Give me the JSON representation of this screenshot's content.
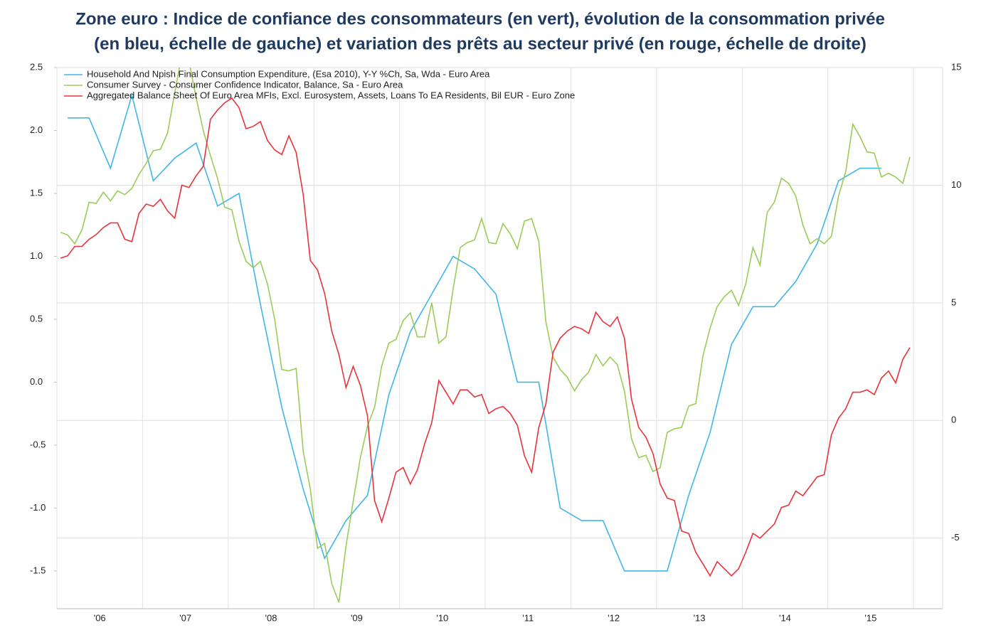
{
  "chart_data": {
    "type": "line",
    "title": [
      "Zone euro : Indice de confiance des consommateurs (en vert), évolution de la consommation privée",
      "(en bleu, échelle de gauche) et variation des prêts au secteur privé (en rouge, échelle de droite)"
    ],
    "x": [
      2006.042,
      2006.125,
      2006.208,
      2006.292,
      2006.375,
      2006.458,
      2006.542,
      2006.625,
      2006.708,
      2006.792,
      2006.875,
      2006.958,
      2007.042,
      2007.125,
      2007.208,
      2007.292,
      2007.375,
      2007.458,
      2007.542,
      2007.625,
      2007.708,
      2007.792,
      2007.875,
      2007.958,
      2008.042,
      2008.125,
      2008.208,
      2008.292,
      2008.375,
      2008.458,
      2008.542,
      2008.625,
      2008.708,
      2008.792,
      2008.875,
      2008.958,
      2009.042,
      2009.125,
      2009.208,
      2009.292,
      2009.375,
      2009.458,
      2009.542,
      2009.625,
      2009.708,
      2009.792,
      2009.875,
      2009.958,
      2010.042,
      2010.125,
      2010.208,
      2010.292,
      2010.375,
      2010.458,
      2010.542,
      2010.625,
      2010.708,
      2010.792,
      2010.875,
      2010.958,
      2011.042,
      2011.125,
      2011.208,
      2011.292,
      2011.375,
      2011.458,
      2011.542,
      2011.625,
      2011.708,
      2011.792,
      2011.875,
      2011.958,
      2012.042,
      2012.125,
      2012.208,
      2012.292,
      2012.375,
      2012.458,
      2012.542,
      2012.625,
      2012.708,
      2012.792,
      2012.875,
      2012.958,
      2013.042,
      2013.125,
      2013.208,
      2013.292,
      2013.375,
      2013.458,
      2013.542,
      2013.625,
      2013.708,
      2013.792,
      2013.875,
      2013.958,
      2014.042,
      2014.125,
      2014.208,
      2014.292,
      2014.375,
      2014.458,
      2014.542,
      2014.625,
      2014.708,
      2014.792,
      2014.875,
      2014.958,
      2015.042,
      2015.125,
      2015.208,
      2015.292,
      2015.375,
      2015.458,
      2015.542,
      2015.625,
      2015.708,
      2015.792,
      2015.875,
      2015.958
    ],
    "series": [
      {
        "name": "Household And Npish Final Consumption Expenditure, (Esa 2010), Y-Y %Ch, Sa, Wda - Euro Area",
        "color": "#41b6e6",
        "x": [
          2006.125,
          2006.375,
          2006.625,
          2006.875,
          2007.125,
          2007.375,
          2007.625,
          2007.875,
          2008.125,
          2008.375,
          2008.625,
          2008.875,
          2009.125,
          2009.375,
          2009.625,
          2009.875,
          2010.125,
          2010.375,
          2010.625,
          2010.875,
          2011.125,
          2011.375,
          2011.625,
          2011.875,
          2012.125,
          2012.375,
          2012.625,
          2012.875,
          2013.125,
          2013.375,
          2013.625,
          2013.875,
          2014.125,
          2014.375,
          2014.625,
          2014.875,
          2015.125,
          2015.375,
          2015.625
        ],
        "values": [
          2.1,
          2.1,
          1.7,
          2.28,
          1.6,
          1.78,
          1.9,
          1.4,
          1.5,
          0.62,
          -0.2,
          -0.85,
          -1.4,
          -1.1,
          -0.9,
          -0.1,
          0.4,
          0.7,
          1.0,
          0.9,
          0.7,
          0.0,
          0.0,
          -1.0,
          -1.1,
          -1.1,
          -1.5,
          -1.5,
          -1.5,
          -0.9,
          -0.4,
          0.3,
          0.6,
          0.6,
          0.8,
          1.1,
          1.6,
          1.7,
          1.7
        ]
      },
      {
        "name": "Consumer Survey - Consumer Confidence Indicator, Balance, Sa - Euro Area",
        "color": "#9bcb5a",
        "values": [
          1.19,
          1.17,
          1.1,
          1.21,
          1.43,
          1.42,
          1.51,
          1.44,
          1.52,
          1.49,
          1.54,
          1.65,
          1.74,
          1.84,
          1.85,
          1.98,
          2.3,
          2.6,
          2.55,
          2.26,
          2.0,
          1.8,
          1.62,
          1.39,
          1.37,
          1.12,
          0.96,
          0.91,
          0.96,
          0.78,
          0.5,
          0.1,
          0.09,
          0.11,
          -0.55,
          -0.85,
          -1.32,
          -1.28,
          -1.6,
          -1.75,
          -1.3,
          -0.95,
          -0.6,
          -0.35,
          -0.2,
          0.13,
          0.31,
          0.34,
          0.49,
          0.55,
          0.36,
          0.36,
          0.63,
          0.31,
          0.36,
          0.74,
          1.07,
          1.11,
          1.13,
          1.3,
          1.11,
          1.1,
          1.26,
          1.18,
          1.06,
          1.28,
          1.3,
          1.12,
          0.48,
          0.2,
          0.1,
          0.04,
          -0.07,
          0.02,
          0.08,
          0.22,
          0.13,
          0.2,
          0.14,
          -0.07,
          -0.45,
          -0.6,
          -0.58,
          -0.71,
          -0.68,
          -0.4,
          -0.37,
          -0.36,
          -0.19,
          -0.17,
          0.21,
          0.43,
          0.6,
          0.68,
          0.73,
          0.61,
          0.78,
          1.07,
          0.93,
          1.35,
          1.43,
          1.62,
          1.58,
          1.48,
          1.25,
          1.1,
          1.14,
          1.1,
          1.16,
          1.48,
          1.67,
          2.05,
          1.95,
          1.83,
          1.82,
          1.63,
          1.66,
          1.63,
          1.58,
          1.79
        ]
      },
      {
        "name": "Aggregated Balance Sheet Of Euro Area MFIs, Excl. Eurosystem, Assets, Loans To EA Residents, Bil EUR - Euro Zone",
        "color": "#e8323c",
        "axis": "y2",
        "values": [
          6.9,
          7.0,
          7.4,
          7.4,
          7.7,
          7.9,
          8.2,
          8.4,
          8.4,
          7.7,
          7.6,
          8.8,
          9.2,
          9.1,
          9.4,
          8.9,
          8.6,
          10.0,
          9.9,
          10.4,
          10.8,
          12.8,
          13.2,
          13.5,
          13.7,
          13.3,
          12.4,
          12.5,
          12.7,
          11.9,
          11.5,
          11.3,
          12.1,
          11.4,
          9.6,
          6.8,
          6.4,
          5.4,
          3.8,
          2.8,
          1.4,
          2.3,
          1.5,
          0.2,
          -3.4,
          -4.3,
          -3.3,
          -2.2,
          -2.0,
          -2.7,
          -2.1,
          -1.0,
          -0.1,
          1.7,
          1.2,
          0.7,
          1.3,
          1.3,
          1.0,
          1.1,
          0.3,
          0.5,
          0.6,
          0.3,
          -0.2,
          -1.5,
          -2.2,
          -0.3,
          0.7,
          2.9,
          3.5,
          3.8,
          4.0,
          3.9,
          3.7,
          4.6,
          4.2,
          4.0,
          4.4,
          3.5,
          0.9,
          -0.3,
          -0.7,
          -1.4,
          -2.7,
          -3.3,
          -3.4,
          -4.7,
          -4.8,
          -5.6,
          -6.1,
          -6.6,
          -6.0,
          -6.3,
          -6.6,
          -6.3,
          -5.6,
          -4.8,
          -5.0,
          -4.7,
          -4.4,
          -3.7,
          -3.6,
          -3.0,
          -3.2,
          -2.8,
          -2.4,
          -2.3,
          -0.6,
          0.1,
          0.5,
          1.2,
          1.2,
          1.3,
          1.1,
          1.8,
          2.1,
          1.6,
          2.6,
          3.1
        ]
      }
    ],
    "xlim": [
      2006,
      2016.34
    ],
    "xticks": [
      {
        "value": 2006.5,
        "label": "'06"
      },
      {
        "value": 2007.5,
        "label": "'07"
      },
      {
        "value": 2008.5,
        "label": "'08"
      },
      {
        "value": 2009.5,
        "label": "'09"
      },
      {
        "value": 2010.5,
        "label": "'10"
      },
      {
        "value": 2011.5,
        "label": "'11"
      },
      {
        "value": 2012.5,
        "label": "'12"
      },
      {
        "value": 2013.5,
        "label": "'13"
      },
      {
        "value": 2014.5,
        "label": "'14"
      },
      {
        "value": 2015.5,
        "label": "'15"
      }
    ],
    "ylim": [
      -1.8,
      2.5
    ],
    "yticks": [
      2.5,
      {
        "value": 2,
        "label": "2.0"
      },
      1.5,
      {
        "value": 1,
        "label": "1.0"
      },
      0.5,
      {
        "value": 0,
        "label": "0.0"
      },
      -0.5,
      {
        "value": -1,
        "label": "-1.0"
      },
      -1.5
    ],
    "y2lim": [
      -8,
      15
    ],
    "y2ticks": [
      15,
      10,
      5,
      0,
      -5
    ],
    "grid": "y2",
    "legend": "upper left"
  }
}
